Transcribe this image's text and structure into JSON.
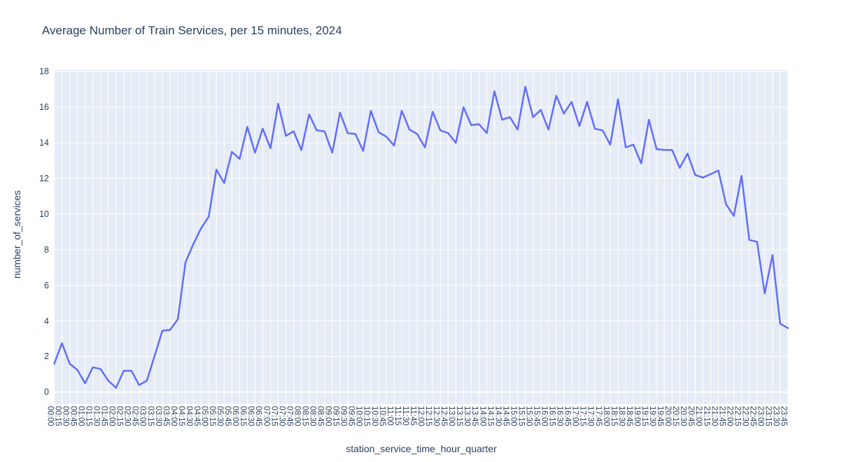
{
  "chart_data": {
    "type": "line",
    "title": "Average Number of Train Services, per 15 minutes, 2024",
    "xlabel": "station_service_time_hour_quarter",
    "ylabel": "number_of_services",
    "legend": "none",
    "grid": true,
    "plot_bg_color": "#e5ecf6",
    "grid_color": "#ffffff",
    "line_color": "#636efa",
    "text_color": "#2a3f5f",
    "ylim": [
      -0.65,
      18.1
    ],
    "yticks": [
      0,
      2,
      4,
      6,
      8,
      10,
      12,
      14,
      16,
      18
    ],
    "categories": [
      "00:00",
      "00:15",
      "00:30",
      "00:45",
      "01:00",
      "01:15",
      "01:30",
      "01:45",
      "02:00",
      "02:15",
      "02:30",
      "02:45",
      "03:00",
      "03:15",
      "03:30",
      "03:45",
      "04:00",
      "04:15",
      "04:30",
      "04:45",
      "05:00",
      "05:15",
      "05:30",
      "05:45",
      "06:00",
      "06:15",
      "06:30",
      "06:45",
      "07:00",
      "07:15",
      "07:30",
      "07:45",
      "08:00",
      "08:15",
      "08:30",
      "08:45",
      "09:00",
      "09:15",
      "09:30",
      "09:45",
      "10:00",
      "10:15",
      "10:30",
      "10:45",
      "11:00",
      "11:15",
      "11:30",
      "11:45",
      "12:00",
      "12:15",
      "12:30",
      "12:45",
      "13:00",
      "13:15",
      "13:30",
      "13:45",
      "14:00",
      "14:15",
      "14:30",
      "14:45",
      "15:00",
      "15:15",
      "15:30",
      "15:45",
      "16:00",
      "16:15",
      "16:30",
      "16:45",
      "17:00",
      "17:15",
      "17:30",
      "17:45",
      "18:00",
      "18:15",
      "18:30",
      "18:45",
      "19:00",
      "19:15",
      "19:30",
      "19:45",
      "20:00",
      "20:15",
      "20:30",
      "20:45",
      "21:00",
      "21:15",
      "21:30",
      "21:45",
      "22:00",
      "22:15",
      "22:30",
      "22:45",
      "23:00",
      "23:15",
      "23:30",
      "23:45"
    ],
    "values": [
      1.6,
      2.75,
      1.6,
      1.25,
      0.5,
      1.4,
      1.3,
      0.65,
      0.25,
      1.2,
      1.2,
      0.4,
      0.65,
      2.05,
      3.45,
      3.5,
      4.1,
      7.3,
      8.3,
      9.2,
      9.85,
      12.5,
      11.75,
      13.5,
      13.1,
      14.9,
      13.45,
      14.8,
      13.7,
      16.2,
      14.4,
      14.65,
      13.6,
      15.6,
      14.7,
      14.65,
      13.45,
      15.7,
      14.55,
      14.5,
      13.55,
      15.8,
      14.6,
      14.35,
      13.85,
      15.8,
      14.75,
      14.5,
      13.75,
      15.75,
      14.7,
      14.55,
      14.0,
      16.0,
      15.0,
      15.05,
      14.55,
      16.9,
      15.3,
      15.45,
      14.75,
      17.15,
      15.45,
      15.85,
      14.75,
      16.65,
      15.65,
      16.3,
      14.95,
      16.3,
      14.8,
      14.7,
      13.9,
      16.45,
      13.75,
      13.9,
      12.85,
      15.3,
      13.65,
      13.6,
      13.6,
      12.6,
      13.4,
      12.2,
      12.05,
      12.25,
      12.45,
      10.55,
      9.9,
      12.15,
      8.55,
      8.45,
      5.55,
      7.7,
      3.85,
      3.6
    ]
  }
}
